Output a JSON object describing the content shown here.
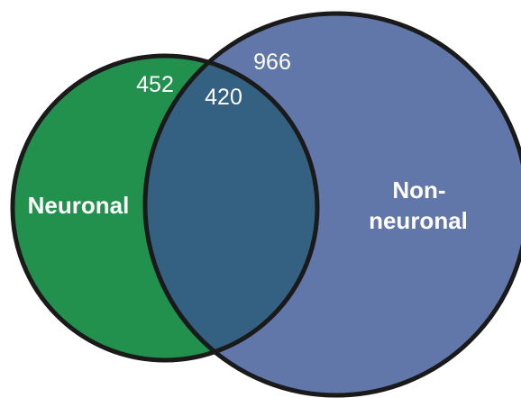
{
  "venn": {
    "sets": {
      "neuronal": {
        "label": "Neuronal",
        "only_count": "452",
        "color": "#22914d"
      },
      "non_neuronal": {
        "label_line1": "Non-",
        "label_line2": "neuronal",
        "only_count": "966",
        "color": "#6177a9"
      }
    },
    "intersection": {
      "count": "420",
      "color": "#346181"
    },
    "outline_color": "#1a1a1a"
  }
}
